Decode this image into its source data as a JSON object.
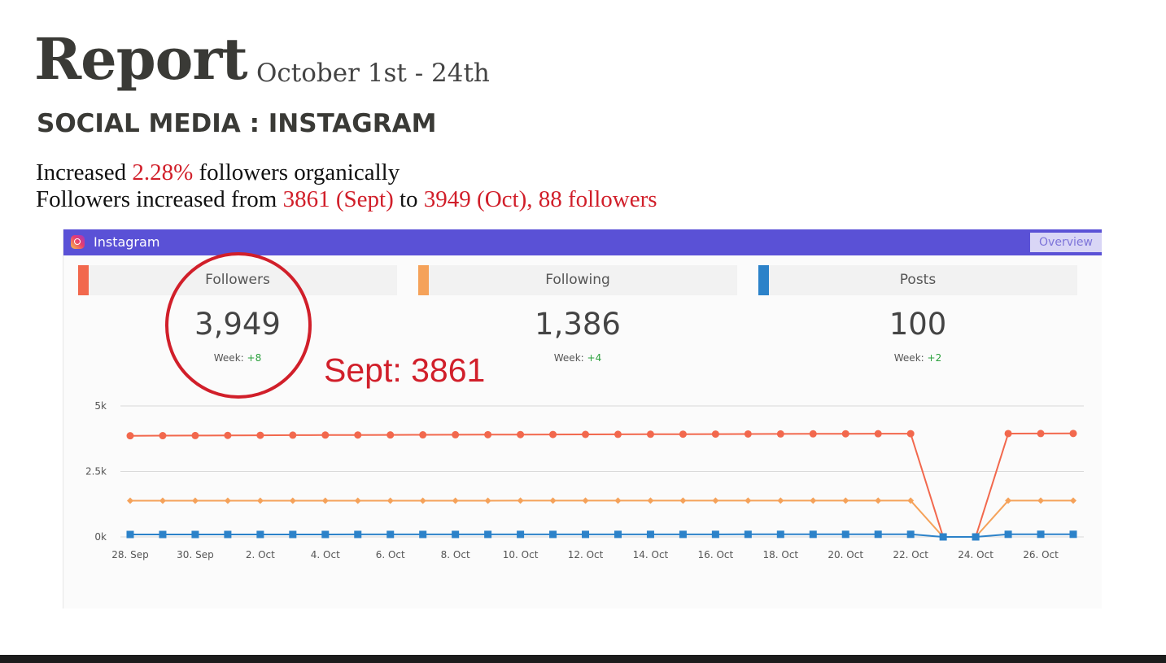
{
  "report": {
    "title": "Report",
    "date_range": "October 1st -  24th",
    "subtitle": "SOCIAL MEDIA : INSTAGRAM",
    "line1": {
      "pre": "Increased ",
      "highlight": "2.28%",
      "post": " followers organically"
    },
    "line2": {
      "pre": "Followers increased from ",
      "h1": "3861 (Sept)",
      "mid": " to ",
      "h2": "3949 (Oct), 88 followers"
    },
    "highlight_color": "#d11f2a"
  },
  "widget": {
    "header_title": "Instagram",
    "header_color": "#5a51d6",
    "overview_button": "Overview",
    "stats": [
      {
        "label": "Followers",
        "value": "3,949",
        "week_label": "Week:",
        "week_change": "+8",
        "color": "#f2684d"
      },
      {
        "label": "Following",
        "value": "1,386",
        "week_label": "Week:",
        "week_change": "+4",
        "color": "#f5a25a"
      },
      {
        "label": "Posts",
        "value": "100",
        "week_label": "Week:",
        "week_change": "+2",
        "color": "#2c82c9"
      }
    ]
  },
  "annotation": "Sept: 3861",
  "chart_data": {
    "type": "line",
    "x": [
      "28. Sep",
      "29. Sep",
      "30. Sep",
      "1. Oct",
      "2. Oct",
      "3. Oct",
      "4. Oct",
      "5. Oct",
      "6. Oct",
      "7. Oct",
      "8. Oct",
      "9. Oct",
      "10. Oct",
      "11. Oct",
      "12. Oct",
      "13. Oct",
      "14. Oct",
      "15. Oct",
      "16. Oct",
      "17. Oct",
      "18. Oct",
      "19. Oct",
      "20. Oct",
      "21. Oct",
      "22. Oct",
      "23. Oct",
      "24. Oct",
      "25. Oct",
      "26. Oct",
      "27. Oct"
    ],
    "tick_labels": [
      "28. Sep",
      "30. Sep",
      "2. Oct",
      "4. Oct",
      "6. Oct",
      "8. Oct",
      "10. Oct",
      "12. Oct",
      "14. Oct",
      "16. Oct",
      "18. Oct",
      "20. Oct",
      "22. Oct",
      "24. Oct",
      "26. Oct"
    ],
    "y_ticks": [
      "0k",
      "2.5k",
      "5k"
    ],
    "ylim": [
      0,
      5000
    ],
    "grid": true,
    "series": [
      {
        "name": "Followers",
        "color": "#f2684d",
        "marker": "circle",
        "values": [
          3861,
          3866,
          3870,
          3875,
          3880,
          3885,
          3888,
          3890,
          3893,
          3897,
          3900,
          3903,
          3906,
          3910,
          3913,
          3916,
          3919,
          3922,
          3926,
          3929,
          3932,
          3935,
          3938,
          3940,
          3941,
          0,
          0,
          3945,
          3947,
          3949
        ]
      },
      {
        "name": "Following",
        "color": "#f5a25a",
        "marker": "diamond",
        "values": [
          1382,
          1382,
          1382,
          1383,
          1383,
          1383,
          1383,
          1383,
          1383,
          1383,
          1383,
          1383,
          1384,
          1384,
          1384,
          1384,
          1384,
          1384,
          1384,
          1384,
          1385,
          1385,
          1385,
          1385,
          1385,
          0,
          0,
          1386,
          1386,
          1386
        ]
      },
      {
        "name": "Posts",
        "color": "#2c82c9",
        "marker": "square",
        "values": [
          93,
          93,
          93,
          94,
          94,
          94,
          94,
          95,
          95,
          95,
          95,
          96,
          96,
          96,
          96,
          97,
          97,
          97,
          97,
          98,
          98,
          98,
          98,
          99,
          99,
          0,
          0,
          99,
          100,
          100
        ]
      }
    ]
  }
}
